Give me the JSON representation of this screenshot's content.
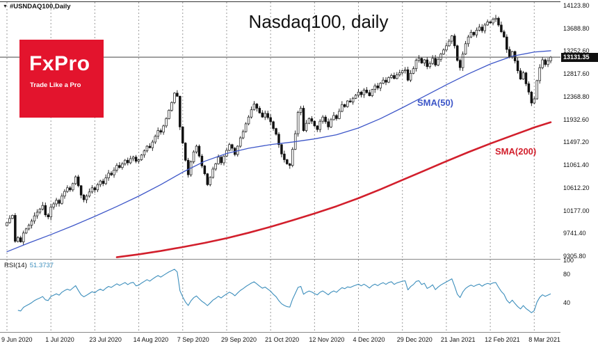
{
  "header": {
    "symbol_label": "#USNDAQ100,Daily",
    "title": "Nasdaq100, daily"
  },
  "logo": {
    "name": "FxPro",
    "tagline": "Trade Like a Pro",
    "bg_color": "#e3142d",
    "text_color": "#ffffff"
  },
  "indicators": {
    "sma50": {
      "label": "SMA(50)",
      "color": "#3d56c8",
      "points": [
        [
          0,
          9390
        ],
        [
          8,
          9560
        ],
        [
          16,
          9720
        ],
        [
          24,
          9890
        ],
        [
          32,
          10070
        ],
        [
          40,
          10260
        ],
        [
          48,
          10460
        ],
        [
          56,
          10680
        ],
        [
          64,
          10920
        ],
        [
          72,
          11130
        ],
        [
          80,
          11280
        ],
        [
          88,
          11380
        ],
        [
          96,
          11450
        ],
        [
          104,
          11500
        ],
        [
          112,
          11560
        ],
        [
          120,
          11640
        ],
        [
          128,
          11770
        ],
        [
          136,
          11950
        ],
        [
          144,
          12160
        ],
        [
          152,
          12380
        ],
        [
          160,
          12600
        ],
        [
          168,
          12810
        ],
        [
          176,
          13000
        ],
        [
          184,
          13150
        ],
        [
          192,
          13230
        ],
        [
          198,
          13255
        ]
      ]
    },
    "sma200": {
      "label": "SMA(200)",
      "color": "#d21f2c",
      "points": [
        [
          40,
          9285
        ],
        [
          48,
          9340
        ],
        [
          56,
          9405
        ],
        [
          64,
          9480
        ],
        [
          72,
          9560
        ],
        [
          80,
          9650
        ],
        [
          88,
          9755
        ],
        [
          96,
          9870
        ],
        [
          104,
          9995
        ],
        [
          112,
          10125
        ],
        [
          120,
          10265
        ],
        [
          128,
          10420
        ],
        [
          136,
          10590
        ],
        [
          144,
          10770
        ],
        [
          152,
          10950
        ],
        [
          160,
          11130
        ],
        [
          168,
          11305
        ],
        [
          176,
          11470
        ],
        [
          184,
          11625
        ],
        [
          192,
          11780
        ],
        [
          198,
          11880
        ]
      ]
    },
    "rsi": {
      "label": "RSI(14)",
      "value": "51.3737",
      "color": "#3c8ebc",
      "ticks": [
        "100",
        "80",
        "40"
      ],
      "range": [
        0,
        100
      ]
    }
  },
  "axes": {
    "price_ticks": [
      "14123.80",
      "13688.80",
      "13252.60",
      "12817.60",
      "12368.80",
      "11932.60",
      "11497.20",
      "11061.40",
      "10612.20",
      "10177.00",
      "9741.40",
      "9305.80"
    ],
    "current_price_label": "13131.35",
    "date_ticks": [
      "9 Jun 2020",
      "1 Jul 2020",
      "23 Jul 2020",
      "14 Aug 2020",
      "7 Sep 2020",
      "29 Sep 2020",
      "21 Oct 2020",
      "12 Nov 2020",
      "4 Dec 2020",
      "29 Dec 2020",
      "21 Jan 2021",
      "12 Feb 2021",
      "8 Mar 2021"
    ]
  },
  "chart_data": {
    "type": "candlestick",
    "symbol": "#USNDAQ100",
    "timeframe": "Daily",
    "title": "Nasdaq100, daily",
    "ylim": [
      9305.8,
      14123.8
    ],
    "current_price": 13131.35,
    "candles_per_tick": 16,
    "x_tick_labels": [
      "9 Jun 2020",
      "1 Jul 2020",
      "23 Jul 2020",
      "14 Aug 2020",
      "7 Sep 2020",
      "29 Sep 2020",
      "21 Oct 2020",
      "12 Nov 2020",
      "4 Dec 2020",
      "29 Dec 2020",
      "21 Jan 2021",
      "12 Feb 2021",
      "8 Mar 2021"
    ],
    "closes": [
      9950,
      10030,
      10090,
      9590,
      9660,
      9580,
      9750,
      9830,
      9900,
      9980,
      10080,
      10150,
      10210,
      10280,
      10100,
      10060,
      10250,
      10310,
      10380,
      10320,
      10460,
      10550,
      10620,
      10580,
      10700,
      10830,
      10660,
      10480,
      10390,
      10460,
      10540,
      10620,
      10580,
      10680,
      10750,
      10700,
      10810,
      10900,
      10870,
      10960,
      11050,
      11010,
      11080,
      11150,
      11100,
      11180,
      11210,
      11130,
      11160,
      11250,
      11330,
      11420,
      11390,
      11500,
      11610,
      11720,
      11690,
      11810,
      11950,
      12110,
      12260,
      12440,
      12380,
      11790,
      11480,
      11150,
      10870,
      11120,
      11310,
      11420,
      11230,
      11040,
      10890,
      10680,
      10820,
      10980,
      11080,
      11210,
      11100,
      11230,
      11340,
      11450,
      11380,
      11260,
      11420,
      11580,
      11700,
      11850,
      11980,
      12120,
      12230,
      12150,
      12060,
      11980,
      12050,
      11970,
      11890,
      11760,
      11650,
      11450,
      11270,
      11160,
      11080,
      11050,
      11360,
      11660,
      12070,
      12150,
      11720,
      11860,
      11950,
      11900,
      11810,
      11740,
      11900,
      11980,
      11890,
      11790,
      11930,
      12010,
      11950,
      12090,
      12220,
      12180,
      12290,
      12270,
      12340,
      12400,
      12460,
      12410,
      12500,
      12450,
      12390,
      12510,
      12580,
      12540,
      12630,
      12690,
      12650,
      12740,
      12780,
      12720,
      12790,
      12830,
      12870,
      12890,
      12690,
      12820,
      12910,
      13070,
      13110,
      13020,
      13080,
      12950,
      13010,
      13110,
      12980,
      13090,
      13190,
      13270,
      13350,
      13440,
      13540,
      13350,
      13070,
      12930,
      13190,
      13390,
      13520,
      13610,
      13560,
      13650,
      13710,
      13640,
      13750,
      13810,
      13790,
      13860,
      13880,
      13750,
      13620,
      13520,
      13280,
      13130,
      13240,
      13060,
      12870,
      12710,
      12830,
      12620,
      12460,
      12250,
      12330,
      12680,
      12930,
      13080,
      12990,
      13060,
      13131.35
    ],
    "overlays": [
      "SMA(50)",
      "SMA(200)"
    ],
    "sub_panel": {
      "name": "RSI(14)",
      "last_value": 51.3737,
      "range": [
        0,
        100
      ],
      "ticks": [
        100,
        80,
        40
      ]
    }
  }
}
